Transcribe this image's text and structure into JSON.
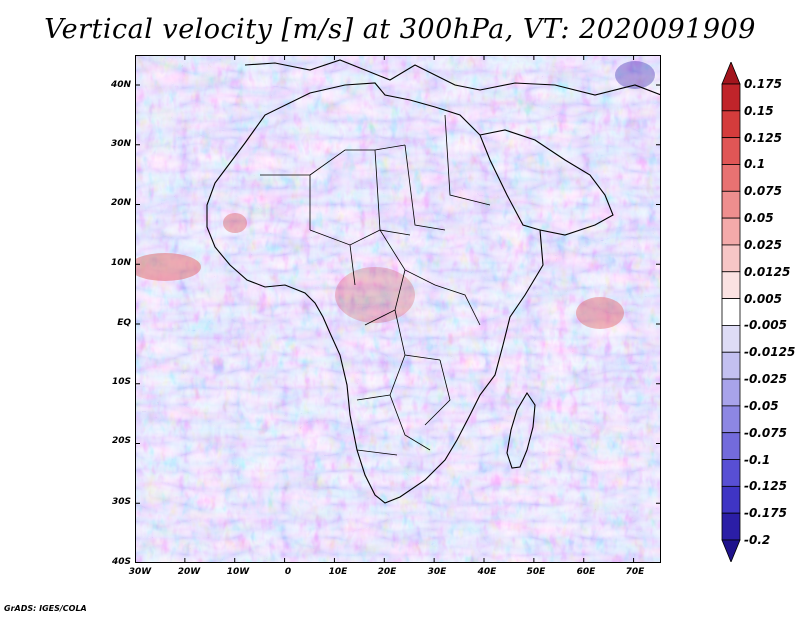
{
  "title": "Vertical velocity [m/s] at 300hPa, VT: 2020091909",
  "footer": "GrADS: IGES/COLA",
  "map": {
    "region": "Africa",
    "lat_labels": [
      "40N",
      "30N",
      "20N",
      "10N",
      "EQ",
      "10S",
      "20S",
      "30S",
      "40S"
    ],
    "lon_labels": [
      "30W",
      "20W",
      "10W",
      "0",
      "10E",
      "20E",
      "30E",
      "40E",
      "50E",
      "60E",
      "70E"
    ]
  },
  "colorbar": {
    "labels": [
      "0.175",
      "0.15",
      "0.125",
      "0.1",
      "0.075",
      "0.05",
      "0.025",
      "0.0125",
      "0.005",
      "-0.005",
      "-0.0125",
      "-0.025",
      "-0.05",
      "-0.075",
      "-0.1",
      "-0.125",
      "-0.175",
      "-0.2"
    ],
    "colors": [
      "#a3151d",
      "#c0242a",
      "#d43c3c",
      "#e05656",
      "#e87272",
      "#ee8e8e",
      "#f3aaaa",
      "#f7c6c6",
      "#fbe2e2",
      "#ffffff",
      "#dedcf6",
      "#c3c0f0",
      "#a8a3ea",
      "#8d87e3",
      "#736bdc",
      "#584fd4",
      "#3f35c4",
      "#2b1ea6",
      "#1f138c"
    ]
  }
}
